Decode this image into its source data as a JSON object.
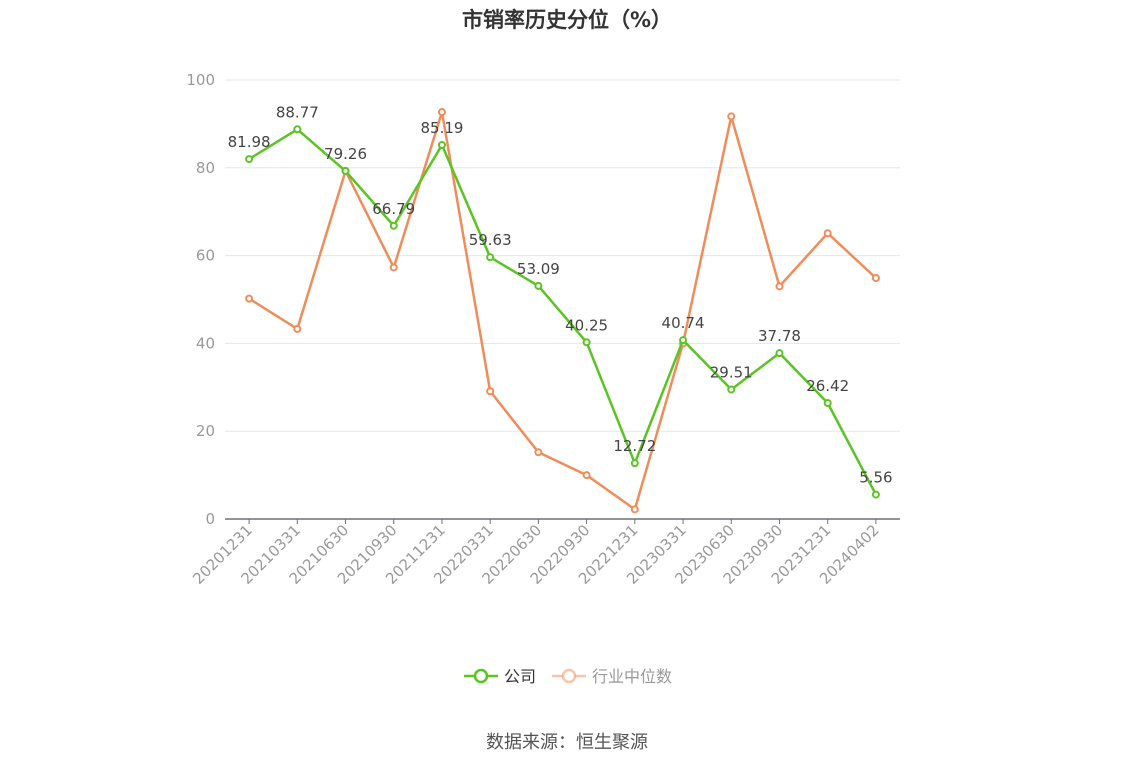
{
  "chart_data": {
    "type": "line",
    "title": "市销率历史分位（%）",
    "categories": [
      "20201231",
      "20210331",
      "20210630",
      "20210930",
      "20211231",
      "20220331",
      "20220630",
      "20220930",
      "20221231",
      "20230331",
      "20230630",
      "20230930",
      "20231231",
      "20240402"
    ],
    "ylim": [
      0,
      100
    ],
    "yticks": [
      "0",
      "20",
      "40",
      "60",
      "80",
      "100"
    ],
    "grid": true,
    "legend_position": "bottom-center",
    "series": [
      {
        "name": "公司",
        "color": "#5ac423",
        "values": [
          81.98,
          88.77,
          79.26,
          66.79,
          85.19,
          59.63,
          53.09,
          40.25,
          12.72,
          40.74,
          29.51,
          37.78,
          26.42,
          5.56
        ],
        "labels": [
          "81.98",
          "88.77",
          "79.26",
          "66.79",
          "85.19",
          "59.63",
          "53.09",
          "40.25",
          "12.72",
          "40.74",
          "29.51",
          "37.78",
          "26.42",
          "5.56"
        ]
      },
      {
        "name": "行业中位数",
        "color": "#f08c5a",
        "values": [
          50.2,
          43.3,
          79.3,
          57.3,
          92.7,
          29.1,
          15.2,
          10.0,
          2.2,
          40.0,
          91.7,
          53.0,
          65.1,
          54.9
        ]
      }
    ]
  },
  "source": "数据来源：恒生聚源"
}
